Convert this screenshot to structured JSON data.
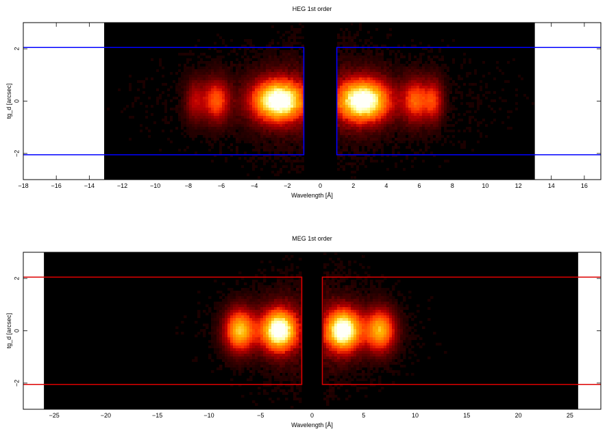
{
  "chart_data": [
    {
      "type": "heatmap",
      "title": "HEG 1st order",
      "xlabel": "Wavelength [Å]",
      "ylabel": "tg_d [arcsec]",
      "xlim": [
        -18,
        17
      ],
      "ylim": [
        -3,
        3
      ],
      "x_ticks": [
        -18,
        -16,
        -14,
        -12,
        -10,
        -8,
        -6,
        -4,
        -2,
        0,
        2,
        4,
        6,
        8,
        10,
        12,
        14,
        16
      ],
      "x_tick_labels": [
        "−18",
        "−16",
        "−14",
        "−12",
        "−10",
        "−8",
        "−6",
        "−4",
        "−2",
        "0",
        "2",
        "4",
        "6",
        "8",
        "10",
        "12",
        "14",
        "16"
      ],
      "y_ticks": [
        -2,
        0,
        2
      ],
      "y_tick_labels": [
        "−2",
        "0",
        "2"
      ],
      "image_extent_x": [
        -13.1,
        13.0
      ],
      "gap_x": [
        -1.0,
        1.0
      ],
      "peaks": [
        {
          "x": -2.5,
          "amp": 1.0,
          "sx": 1.1
        },
        {
          "x": -6.3,
          "amp": 0.45,
          "sx": 0.55
        },
        {
          "x": -7.6,
          "amp": 0.25,
          "sx": 0.4
        },
        {
          "x": 2.6,
          "amp": 1.0,
          "sx": 1.1
        },
        {
          "x": 5.8,
          "amp": 0.45,
          "sx": 0.55
        },
        {
          "x": 6.9,
          "amp": 0.35,
          "sx": 0.4
        }
      ],
      "region": {
        "color": "#0000ff",
        "y_range": [
          -2.05,
          2.05
        ],
        "left_box": [
          -18,
          -1.0
        ],
        "right_box": [
          1.0,
          17
        ]
      }
    },
    {
      "type": "heatmap",
      "title": "MEG 1st order",
      "xlabel": "Wavelength [Å]",
      "ylabel": "tg_d [arcsec]",
      "xlim": [
        -28,
        28
      ],
      "ylim": [
        -3,
        3
      ],
      "x_ticks": [
        -25,
        -20,
        -15,
        -10,
        -5,
        0,
        5,
        10,
        15,
        20,
        25
      ],
      "x_tick_labels": [
        "−25",
        "−20",
        "−15",
        "−10",
        "−5",
        "0",
        "5",
        "10",
        "15",
        "20",
        "25"
      ],
      "y_ticks": [
        -2,
        0,
        2
      ],
      "y_tick_labels": [
        "−2",
        "0",
        "2"
      ],
      "image_extent_x": [
        -26.0,
        25.8
      ],
      "gap_x": [
        -1.0,
        1.0
      ],
      "peaks": [
        {
          "x": -3.2,
          "amp": 1.0,
          "sx": 1.2
        },
        {
          "x": -7.0,
          "amp": 0.7,
          "sx": 1.0
        },
        {
          "x": 3.0,
          "amp": 1.0,
          "sx": 1.2
        },
        {
          "x": 6.6,
          "amp": 0.65,
          "sx": 1.0
        }
      ],
      "region": {
        "color": "#dd0000",
        "y_range": [
          -2.05,
          2.05
        ],
        "left_box": [
          -28,
          -1.0
        ],
        "right_box": [
          1.0,
          28
        ]
      }
    }
  ]
}
